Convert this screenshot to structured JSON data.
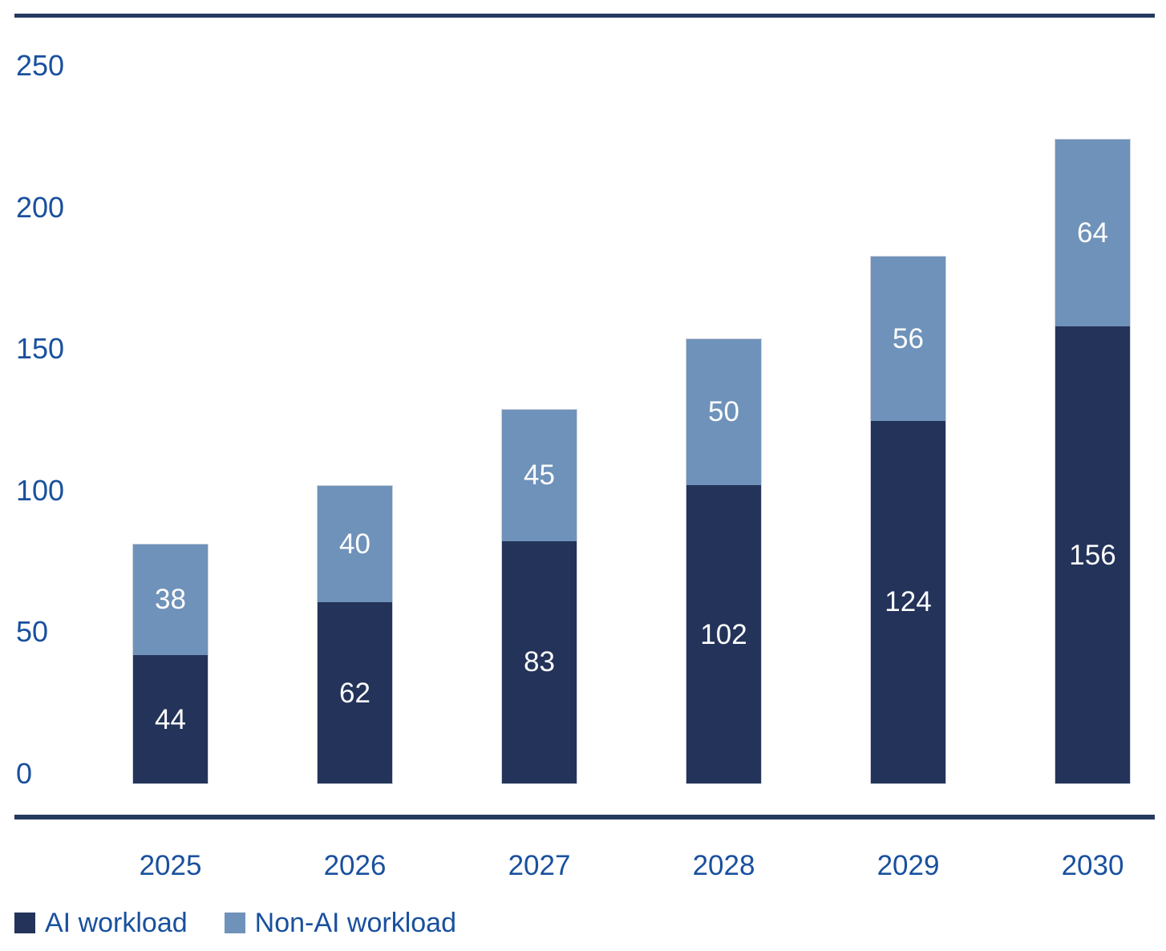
{
  "chart_data": {
    "type": "bar",
    "stacked": true,
    "orientation": "vertical",
    "categories": [
      "2025",
      "2026",
      "2027",
      "2028",
      "2029",
      "2030"
    ],
    "series": [
      {
        "name": "AI workload",
        "color": "#23335a",
        "values": [
          44,
          62,
          83,
          102,
          124,
          156
        ]
      },
      {
        "name": "Non-AI workload",
        "color": "#6f92ba",
        "values": [
          38,
          40,
          45,
          50,
          56,
          64
        ]
      }
    ],
    "ytick_labels": [
      "0",
      "50",
      "100",
      "150",
      "200",
      "250"
    ],
    "yticks": [
      0,
      50,
      100,
      150,
      200,
      250
    ],
    "ylim": [
      0,
      250
    ],
    "grid": false,
    "value_labels": "inside-center",
    "value_label_color": "#ffffff",
    "legend_position": "bottom-left"
  },
  "colors": {
    "axis_text": "#19509e",
    "frame_line": "#263a60",
    "background": "#ffffff"
  }
}
